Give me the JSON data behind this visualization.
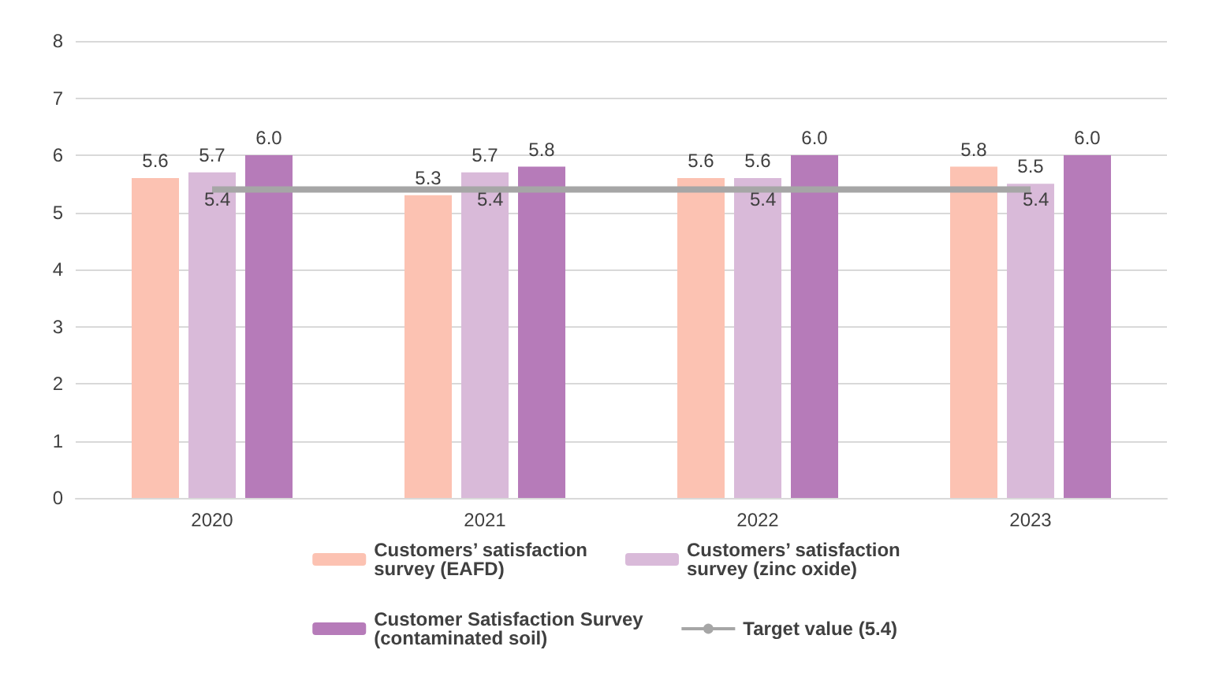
{
  "chart_data": {
    "type": "bar",
    "categories": [
      "2020",
      "2021",
      "2022",
      "2023"
    ],
    "series": [
      {
        "name": "Customers’ satisfaction survey (EAFD)",
        "color": "#fcc2b2",
        "values": [
          5.6,
          5.3,
          5.6,
          5.8
        ],
        "value_labels": [
          "5.6",
          "5.3",
          "5.6",
          "5.8"
        ]
      },
      {
        "name": "Customers’ satisfaction survey (zinc oxide)",
        "color": "#d9bad9",
        "values": [
          5.7,
          5.7,
          5.6,
          5.5
        ],
        "value_labels": [
          "5.7",
          "5.7",
          "5.6",
          "5.5"
        ]
      },
      {
        "name": "Customer Satisfaction Survey (contaminated soil)",
        "color": "#b67bb9",
        "values": [
          6.0,
          5.8,
          6.0,
          6.0
        ],
        "value_labels": [
          "6.0",
          "5.8",
          "6.0",
          "6.0"
        ]
      },
      {
        "name": "Target value (5.4)",
        "type": "line",
        "color": "#a6a6a6",
        "values": [
          5.4,
          5.4,
          5.4,
          5.4
        ],
        "value_labels": [
          "5.4",
          "5.4",
          "5.4",
          "5.4"
        ],
        "marker": "none",
        "line_style": "solid"
      }
    ],
    "ylim": [
      0,
      8
    ],
    "yticks": [
      0,
      1,
      2,
      3,
      4,
      5,
      6,
      7,
      8
    ],
    "grid": "y",
    "legend": "bottom"
  }
}
